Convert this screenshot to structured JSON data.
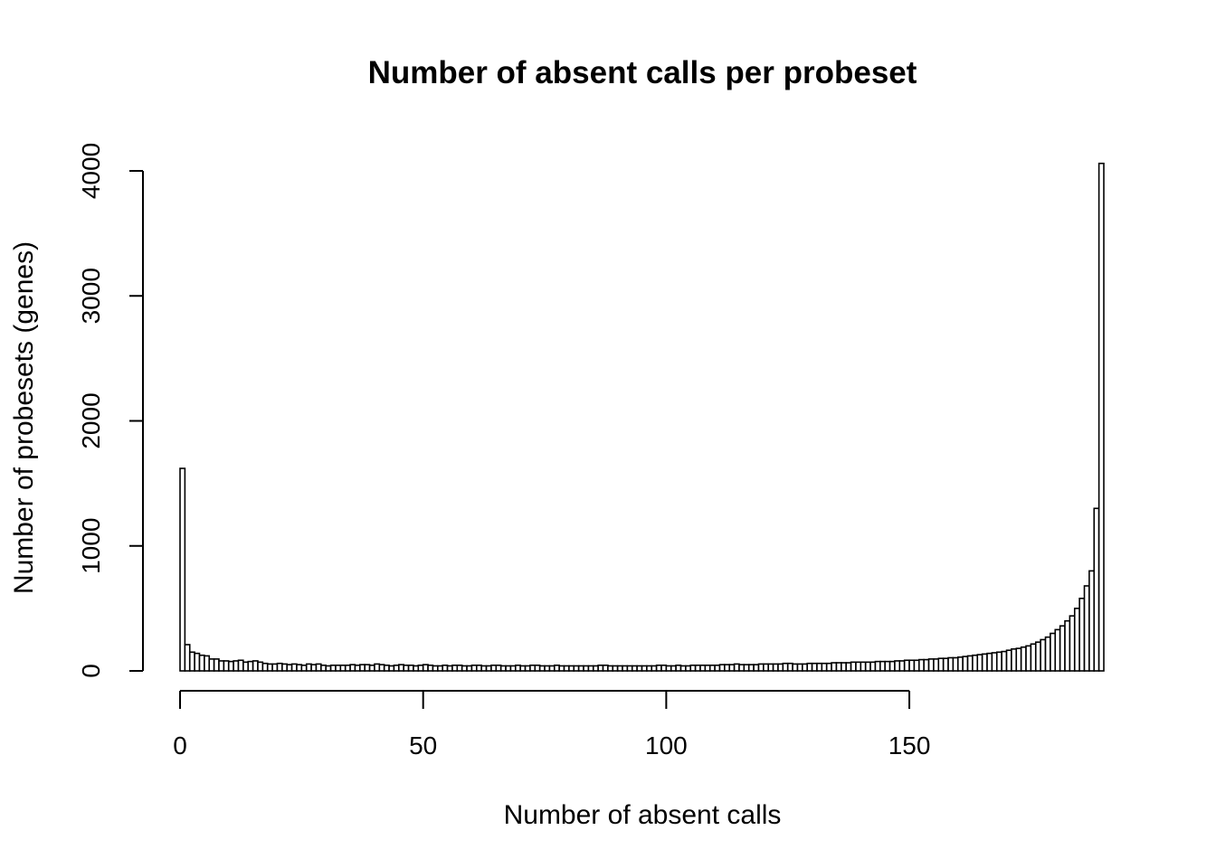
{
  "chart_data": {
    "type": "bar",
    "title": "Number of absent calls per probeset",
    "xlabel": "Number of absent calls",
    "ylabel": "Number of probesets (genes)",
    "x_ticks": [
      0,
      50,
      100,
      150
    ],
    "y_ticks": [
      0,
      1000,
      2000,
      3000,
      4000
    ],
    "xlim": [
      0,
      190
    ],
    "ylim": [
      0,
      4000
    ],
    "bin_start": 0,
    "bin_width": 1,
    "grid": false,
    "legend": "none",
    "bar_fill": "#ffffff",
    "bar_stroke": "#000000",
    "values": [
      1620,
      210,
      150,
      140,
      125,
      120,
      95,
      95,
      80,
      80,
      75,
      80,
      85,
      70,
      75,
      80,
      70,
      60,
      55,
      55,
      60,
      55,
      50,
      55,
      50,
      45,
      55,
      50,
      55,
      45,
      40,
      45,
      45,
      45,
      45,
      50,
      45,
      50,
      50,
      45,
      55,
      50,
      45,
      40,
      45,
      50,
      45,
      45,
      40,
      45,
      50,
      45,
      40,
      40,
      45,
      40,
      45,
      45,
      40,
      40,
      45,
      45,
      40,
      40,
      45,
      45,
      40,
      40,
      40,
      45,
      40,
      40,
      45,
      45,
      40,
      40,
      40,
      45,
      40,
      40,
      40,
      40,
      40,
      40,
      40,
      40,
      45,
      45,
      40,
      40,
      40,
      40,
      40,
      40,
      40,
      40,
      40,
      40,
      45,
      45,
      40,
      40,
      45,
      40,
      40,
      45,
      45,
      45,
      45,
      45,
      45,
      50,
      50,
      50,
      55,
      50,
      50,
      50,
      50,
      55,
      55,
      55,
      55,
      55,
      60,
      60,
      55,
      55,
      55,
      60,
      60,
      60,
      60,
      60,
      65,
      65,
      65,
      65,
      70,
      70,
      70,
      70,
      70,
      75,
      75,
      75,
      75,
      80,
      80,
      85,
      85,
      85,
      90,
      90,
      95,
      95,
      100,
      100,
      105,
      105,
      110,
      115,
      120,
      125,
      130,
      135,
      140,
      145,
      150,
      155,
      165,
      175,
      180,
      190,
      200,
      215,
      230,
      250,
      270,
      300,
      330,
      360,
      400,
      440,
      500,
      580,
      680,
      800,
      1300,
      4060
    ]
  }
}
